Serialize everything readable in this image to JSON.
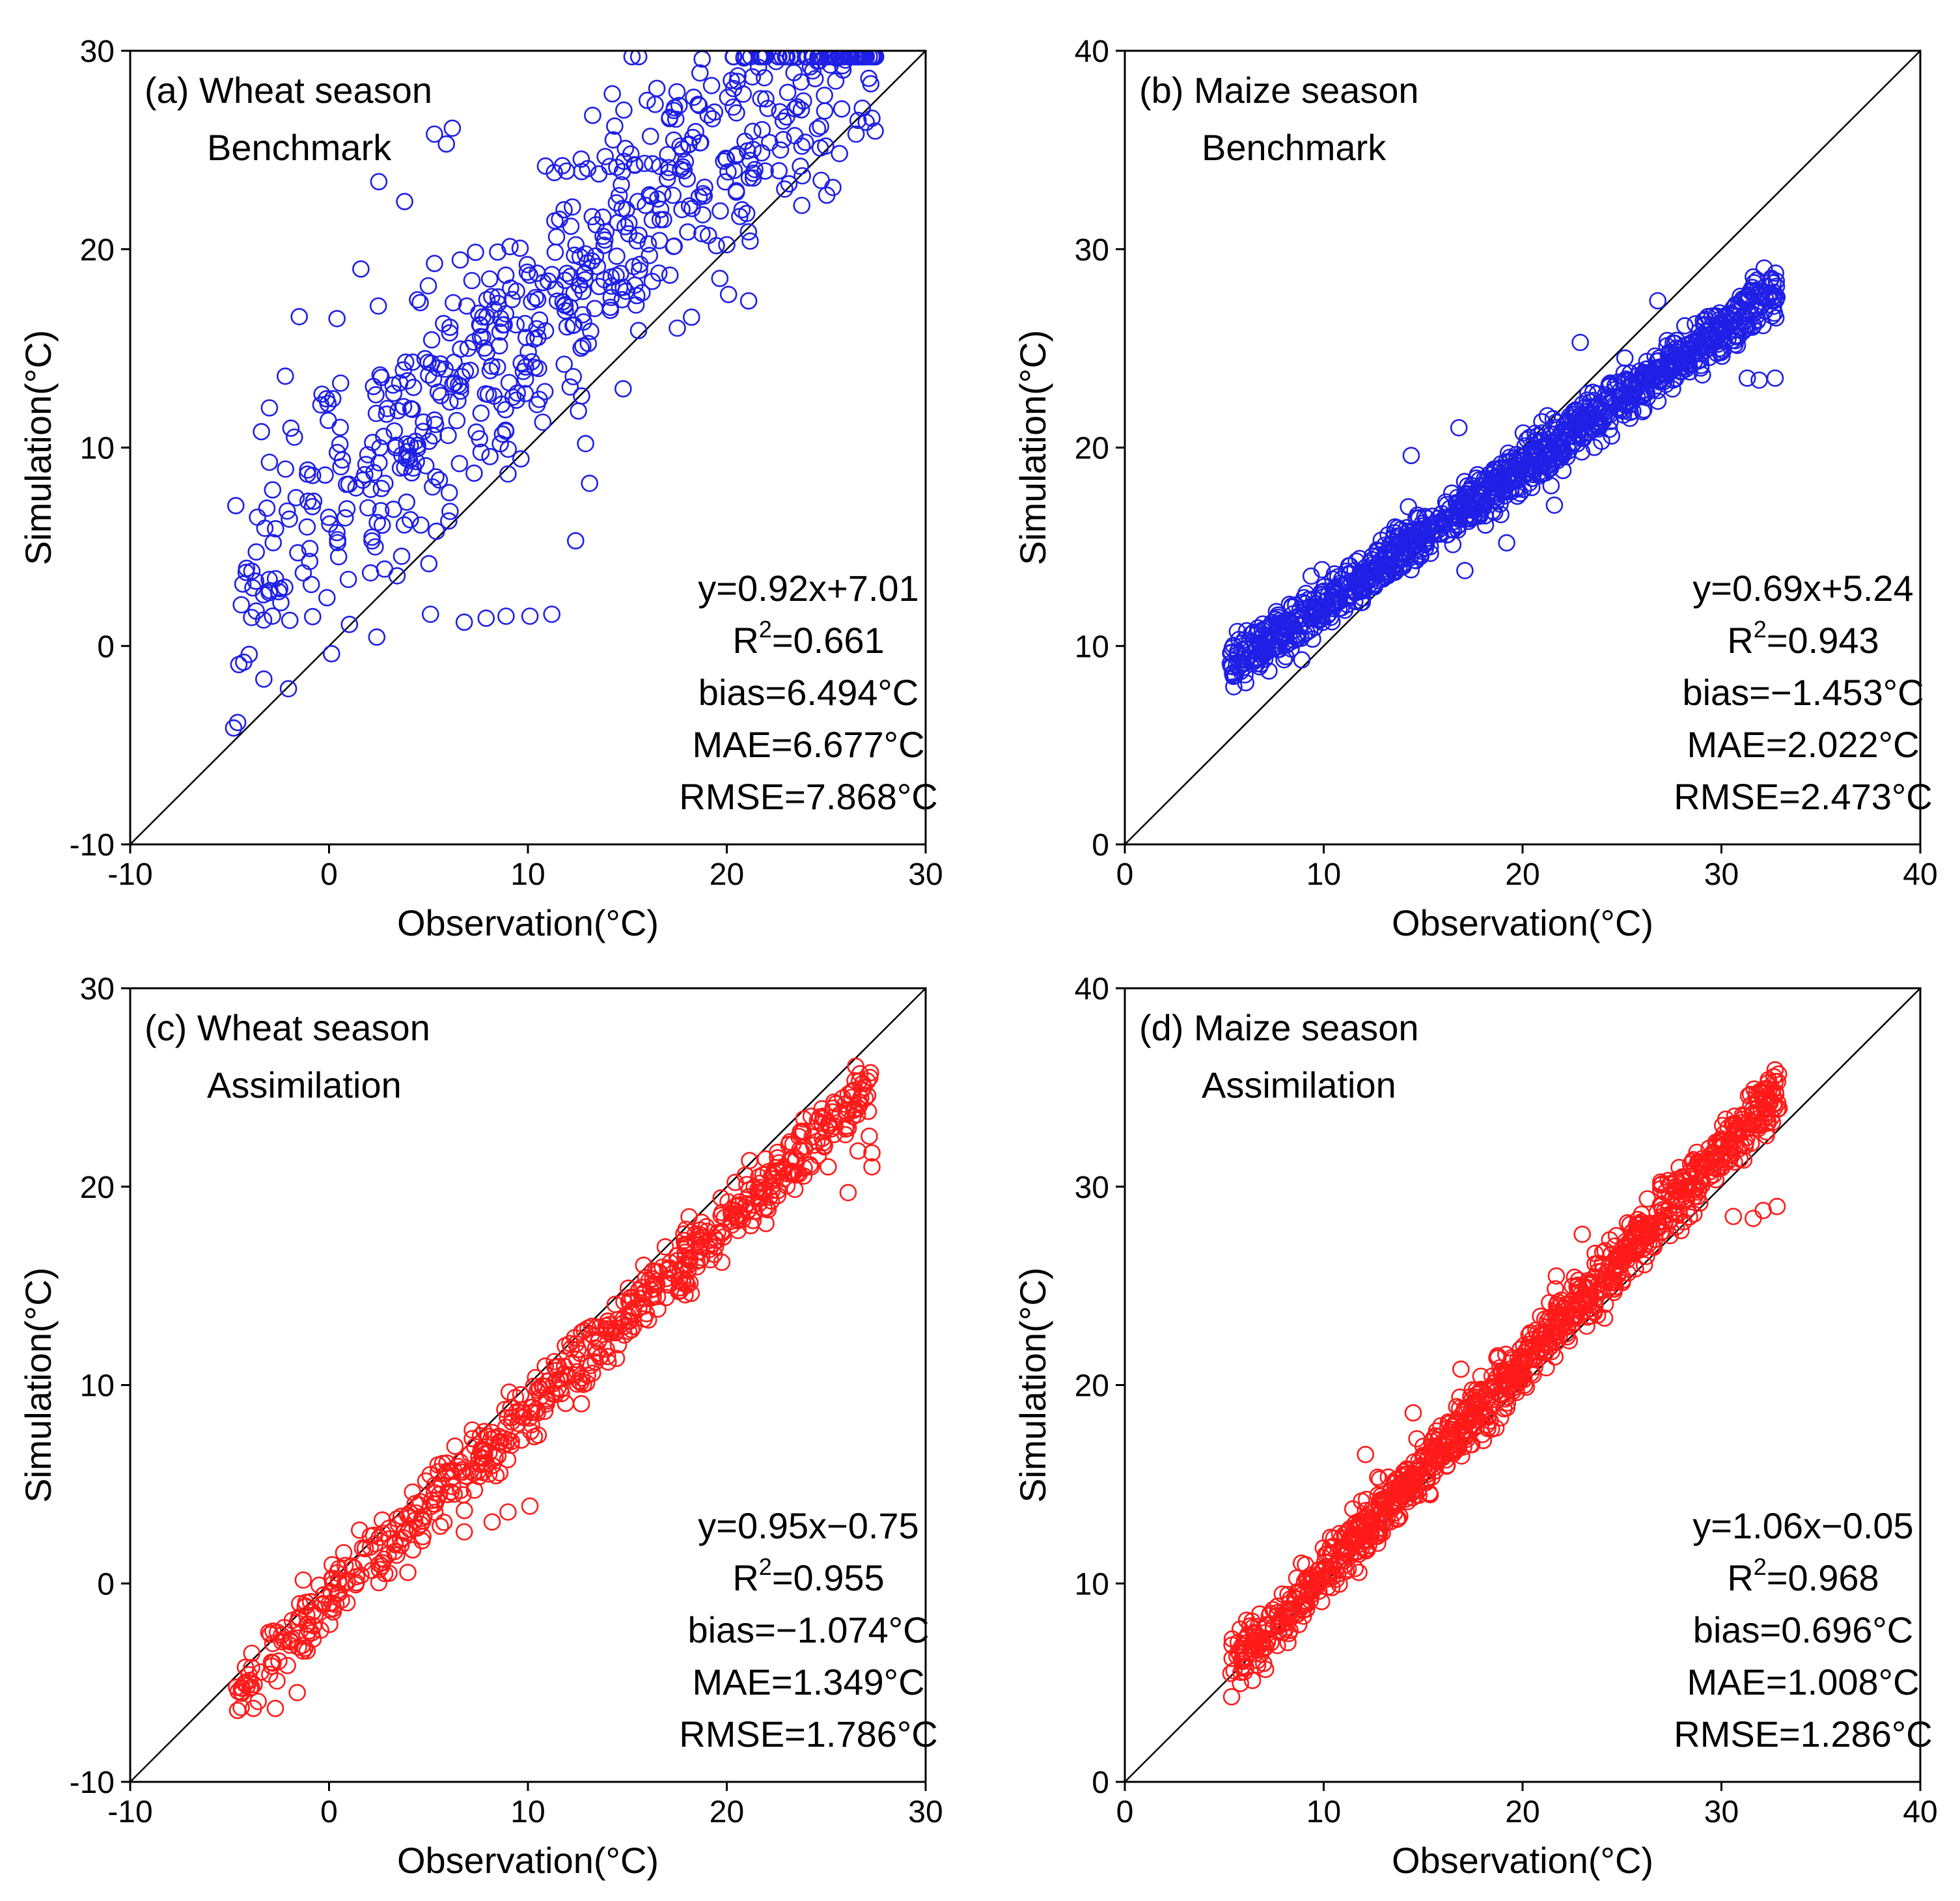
{
  "chart_data": [
    {
      "id": "a",
      "type": "scatter",
      "title_line1": "(a) Wheat season",
      "title_line2": "Benchmark",
      "xlabel": "Observation(°C)",
      "ylabel": "Simulation(°C)",
      "xlim": [
        -10,
        30
      ],
      "ylim": [
        -10,
        30
      ],
      "xticks": [
        "-10",
        "0",
        "10",
        "20",
        "30"
      ],
      "yticks": [
        "-10",
        "0",
        "10",
        "20",
        "30"
      ],
      "color": "#1f1fe6",
      "fit": {
        "slope": 0.92,
        "intercept": 7.01
      },
      "stats": {
        "eq": "y=0.92x+7.01",
        "r2_prefix": "R",
        "r2_sup": "2",
        "r2_value": "=0.661",
        "bias": "bias=6.494°C",
        "mae": "MAE=6.677°C",
        "rmse": "RMSE=7.868°C"
      },
      "scatter_params": {
        "xmin": -4.8,
        "xmax": 27.5,
        "noise": 4.6,
        "n": 650,
        "seed": 11
      },
      "extra_points": [
        [
          5.1,
          1.6
        ],
        [
          6.8,
          1.2
        ],
        [
          7.9,
          1.4
        ],
        [
          8.9,
          1.5
        ],
        [
          10.1,
          1.5
        ],
        [
          11.2,
          1.6
        ],
        [
          12.4,
          5.3
        ],
        [
          12.9,
          10.2
        ],
        [
          13.1,
          8.2
        ],
        [
          12.7,
          12.6
        ],
        [
          5.3,
          25.8
        ],
        [
          5.9,
          25.3
        ],
        [
          6.2,
          26.1
        ],
        [
          16.0,
          27.5
        ],
        [
          16.4,
          27.3
        ],
        [
          24.7,
          25.1
        ],
        [
          26.5,
          25.8
        ],
        [
          27.3,
          26.6
        ],
        [
          -3.4,
          10.8
        ],
        [
          -3.0,
          12.0
        ],
        [
          -2.2,
          13.6
        ],
        [
          -1.5,
          16.6
        ],
        [
          0.4,
          16.5
        ],
        [
          1.6,
          19.0
        ],
        [
          2.5,
          23.4
        ],
        [
          3.8,
          22.4
        ],
        [
          21.0,
          21.8
        ],
        [
          22.7,
          25.0
        ],
        [
          23.8,
          23.7
        ]
      ]
    },
    {
      "id": "b",
      "type": "scatter",
      "title_line1": "(b) Maize season",
      "title_line2": "Benchmark",
      "xlabel": "Observation(°C)",
      "ylabel": "Simulation(°C)",
      "xlim": [
        0,
        40
      ],
      "ylim": [
        0,
        40
      ],
      "xticks": [
        "0",
        "10",
        "20",
        "30",
        "40"
      ],
      "yticks": [
        "0",
        "10",
        "20",
        "30",
        "40"
      ],
      "color": "#1f1fe6",
      "fit": {
        "slope": 0.69,
        "intercept": 5.24
      },
      "stats": {
        "eq": "y=0.69x+5.24",
        "r2_prefix": "R",
        "r2_sup": "2",
        "r2_value": "=0.943",
        "bias": "bias=−1.453°C",
        "mae": "MAE=2.022°C",
        "rmse": "RMSE=2.473°C"
      },
      "scatter_params": {
        "xmin": 5.3,
        "xmax": 32.8,
        "noise": 0.9,
        "n": 1100,
        "seed": 23
      },
      "extra_points": [
        [
          5.4,
          9.9
        ],
        [
          6.0,
          10.3
        ],
        [
          8.9,
          9.3
        ],
        [
          31.3,
          23.5
        ],
        [
          31.9,
          23.4
        ],
        [
          32.7,
          23.5
        ],
        [
          26.8,
          27.4
        ],
        [
          32.6,
          28.3
        ],
        [
          31.6,
          28.6
        ],
        [
          17.1,
          13.8
        ],
        [
          19.2,
          15.2
        ],
        [
          21.6,
          17.1
        ],
        [
          14.4,
          19.6
        ],
        [
          16.8,
          21.0
        ],
        [
          22.9,
          25.3
        ]
      ]
    },
    {
      "id": "c",
      "type": "scatter",
      "title_line1": "(c) Wheat season",
      "title_line2": "Assimilation",
      "xlabel": "Observation(°C)",
      "ylabel": "Simulation(°C)",
      "xlim": [
        -10,
        30
      ],
      "ylim": [
        -10,
        30
      ],
      "xticks": [
        "-10",
        "0",
        "10",
        "20",
        "30"
      ],
      "yticks": [
        "-10",
        "0",
        "10",
        "20",
        "30"
      ],
      "color": "#ff1a1a",
      "fit": {
        "slope": 0.95,
        "intercept": -0.75
      },
      "stats": {
        "eq": "y=0.95x−0.75",
        "r2_prefix": "R",
        "r2_sup": "2",
        "r2_value": "=0.955",
        "bias": "bias=−1.074°C",
        "mae": "MAE=1.349°C",
        "rmse": "RMSE=1.786°C"
      },
      "scatter_params": {
        "xmin": -4.8,
        "xmax": 27.4,
        "noise": 1.1,
        "n": 650,
        "seed": 37
      },
      "extra_points": [
        [
          6.8,
          2.6
        ],
        [
          8.2,
          3.1
        ],
        [
          9.0,
          3.6
        ],
        [
          10.1,
          3.9
        ],
        [
          26.6,
          21.8
        ],
        [
          27.3,
          21.7
        ],
        [
          27.3,
          21.0
        ],
        [
          26.1,
          19.7
        ],
        [
          25.1,
          21.0
        ],
        [
          -4.6,
          -6.4
        ],
        [
          -3.8,
          -6.3
        ],
        [
          -2.7,
          -6.3
        ],
        [
          -1.6,
          -5.5
        ]
      ]
    },
    {
      "id": "d",
      "type": "scatter",
      "title_line1": "(d) Maize season",
      "title_line2": "Assimilation",
      "xlabel": "Observation(°C)",
      "ylabel": "Simulation(°C)",
      "xlim": [
        0,
        40
      ],
      "ylim": [
        0,
        40
      ],
      "xticks": [
        "0",
        "10",
        "20",
        "30",
        "40"
      ],
      "yticks": [
        "0",
        "10",
        "20",
        "30",
        "40"
      ],
      "color": "#ff1a1a",
      "fit": {
        "slope": 1.06,
        "intercept": -0.05
      },
      "stats": {
        "eq": "y=1.06x−0.05",
        "r2_prefix": "R",
        "r2_sup": "2",
        "r2_value": "=0.968",
        "bias": "bias=0.696°C",
        "mae": "MAE=1.008°C",
        "rmse": "RMSE=1.286°C"
      },
      "scatter_params": {
        "xmin": 5.3,
        "xmax": 32.9,
        "noise": 1.0,
        "n": 1100,
        "seed": 53
      },
      "extra_points": [
        [
          5.4,
          7.2
        ],
        [
          5.8,
          7.7
        ],
        [
          6.4,
          8.1
        ],
        [
          30.6,
          28.5
        ],
        [
          31.6,
          28.4
        ],
        [
          32.1,
          28.8
        ],
        [
          32.8,
          29.0
        ],
        [
          32.7,
          35.3
        ],
        [
          32.2,
          34.9
        ],
        [
          23.0,
          27.6
        ],
        [
          21.7,
          25.5
        ],
        [
          14.5,
          18.6
        ],
        [
          12.1,
          16.5
        ],
        [
          16.9,
          20.8
        ]
      ]
    }
  ]
}
